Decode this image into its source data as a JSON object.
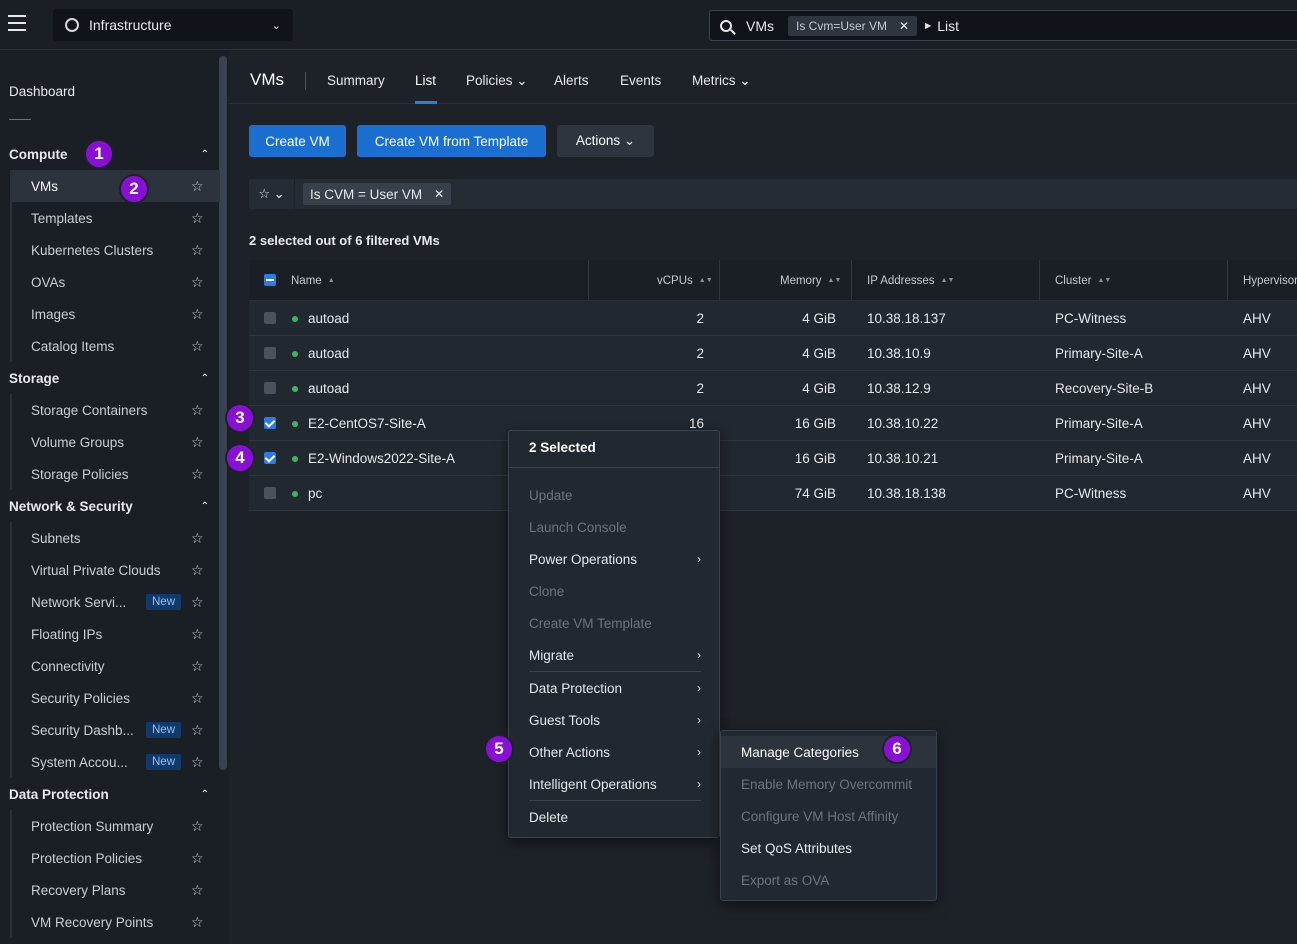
{
  "topbar": {
    "app_name": "Infrastructure",
    "search_term": "VMs",
    "search_chip": "Is Cvm=User VM",
    "search_view": "List"
  },
  "sidebar": {
    "dashboard": "Dashboard",
    "sections": [
      {
        "label": "Compute",
        "items": [
          {
            "label": "VMs",
            "active": true
          },
          {
            "label": "Templates"
          },
          {
            "label": "Kubernetes Clusters"
          },
          {
            "label": "OVAs"
          },
          {
            "label": "Images"
          },
          {
            "label": "Catalog Items"
          }
        ]
      },
      {
        "label": "Storage",
        "items": [
          {
            "label": "Storage Containers"
          },
          {
            "label": "Volume Groups"
          },
          {
            "label": "Storage Policies"
          }
        ]
      },
      {
        "label": "Network & Security",
        "items": [
          {
            "label": "Subnets"
          },
          {
            "label": "Virtual Private Clouds"
          },
          {
            "label": "Network Servi...",
            "badge": "New"
          },
          {
            "label": "Floating IPs"
          },
          {
            "label": "Connectivity"
          },
          {
            "label": "Security Policies"
          },
          {
            "label": "Security Dashb...",
            "badge": "New"
          },
          {
            "label": "System Accou...",
            "badge": "New"
          }
        ]
      },
      {
        "label": "Data Protection",
        "items": [
          {
            "label": "Protection Summary"
          },
          {
            "label": "Protection Policies"
          },
          {
            "label": "Recovery Plans"
          },
          {
            "label": "VM Recovery Points"
          }
        ]
      }
    ]
  },
  "header": {
    "title": "VMs",
    "tabs": [
      "Summary",
      "List",
      "Policies ⌄",
      "Alerts",
      "Events",
      "Metrics ⌄"
    ]
  },
  "toolbar": {
    "create_vm": "Create VM",
    "create_from_template": "Create VM from Template",
    "actions": "Actions ⌄"
  },
  "filter": {
    "chip": "Is CVM = User VM"
  },
  "selection_info": "2 selected out of 6 filtered VMs",
  "table": {
    "columns": [
      "Name",
      "vCPUs",
      "Memory",
      "IP Addresses",
      "Cluster",
      "Hypervisor"
    ],
    "rows": [
      {
        "checked": false,
        "name": "autoad",
        "vcpus": "2",
        "memory": "4 GiB",
        "ip": "10.38.18.137",
        "cluster": "PC-Witness",
        "hypervisor": "AHV"
      },
      {
        "checked": false,
        "name": "autoad",
        "vcpus": "2",
        "memory": "4 GiB",
        "ip": "10.38.10.9",
        "cluster": "Primary-Site-A",
        "hypervisor": "AHV"
      },
      {
        "checked": false,
        "name": "autoad",
        "vcpus": "2",
        "memory": "4 GiB",
        "ip": "10.38.12.9",
        "cluster": "Recovery-Site-B",
        "hypervisor": "AHV"
      },
      {
        "checked": true,
        "name": "E2-CentOS7-Site-A",
        "vcpus": "16",
        "memory": "16 GiB",
        "ip": "10.38.10.22",
        "cluster": "Primary-Site-A",
        "hypervisor": "AHV"
      },
      {
        "checked": true,
        "name": "E2-Windows2022-Site-A",
        "vcpus": "",
        "memory": "16 GiB",
        "ip": "10.38.10.21",
        "cluster": "Primary-Site-A",
        "hypervisor": "AHV"
      },
      {
        "checked": false,
        "name": "pc",
        "vcpus": "",
        "memory": "74 GiB",
        "ip": "10.38.18.138",
        "cluster": "PC-Witness",
        "hypervisor": "AHV"
      }
    ]
  },
  "context_menu": {
    "header": "2 Selected",
    "items": [
      {
        "label": "Update",
        "disabled": true
      },
      {
        "label": "Launch Console",
        "disabled": true
      },
      {
        "label": "Power Operations",
        "submenu": true
      },
      {
        "label": "Clone",
        "disabled": true
      },
      {
        "label": "Create VM Template",
        "disabled": true
      },
      {
        "label": "Migrate",
        "submenu": true
      },
      {
        "label": "Data Protection",
        "submenu": true
      },
      {
        "label": "Guest Tools",
        "submenu": true
      },
      {
        "label": "Other Actions",
        "submenu": true
      },
      {
        "label": "Intelligent Operations",
        "submenu": true
      },
      {
        "label": "Delete"
      }
    ]
  },
  "submenu": {
    "items": [
      {
        "label": "Manage Categories",
        "highlighted": true
      },
      {
        "label": "Enable Memory Overcommit",
        "disabled": true
      },
      {
        "label": "Configure VM Host Affinity",
        "disabled": true
      },
      {
        "label": "Set QoS Attributes"
      },
      {
        "label": "Export as OVA",
        "disabled": true
      }
    ]
  },
  "markers": [
    "1",
    "2",
    "3",
    "4",
    "5",
    "6"
  ]
}
